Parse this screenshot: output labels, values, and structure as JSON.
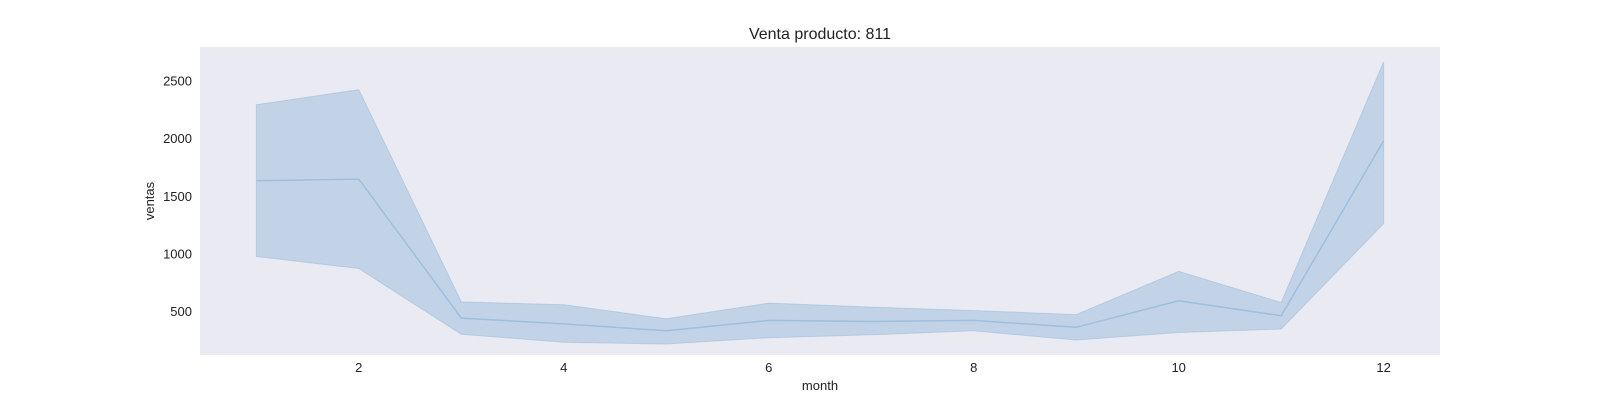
{
  "chart_data": {
    "type": "line",
    "title": "Venta producto: 811",
    "xlabel": "month",
    "ylabel": "ventas",
    "xlim": [
      0.45,
      12.55
    ],
    "ylim": [
      120,
      2790
    ],
    "xticks": [
      2,
      4,
      6,
      8,
      10,
      12
    ],
    "yticks": [
      500,
      1000,
      1500,
      2000,
      2500
    ],
    "grid": false,
    "background": "#eaeaf2",
    "series": [
      {
        "name": "ventas",
        "color": "#9ebfdd",
        "band_color": "#a8c3df",
        "x": [
          1,
          2,
          3,
          4,
          5,
          6,
          7,
          8,
          9,
          10,
          11,
          12
        ],
        "values": [
          1630,
          1645,
          440,
          390,
          330,
          420,
          410,
          420,
          360,
          590,
          460,
          1975
        ],
        "upper": [
          2290,
          2420,
          580,
          555,
          435,
          570,
          535,
          505,
          470,
          845,
          575,
          2660
        ],
        "lower": [
          975,
          870,
          300,
          230,
          215,
          270,
          295,
          330,
          250,
          315,
          345,
          1260
        ]
      }
    ]
  }
}
